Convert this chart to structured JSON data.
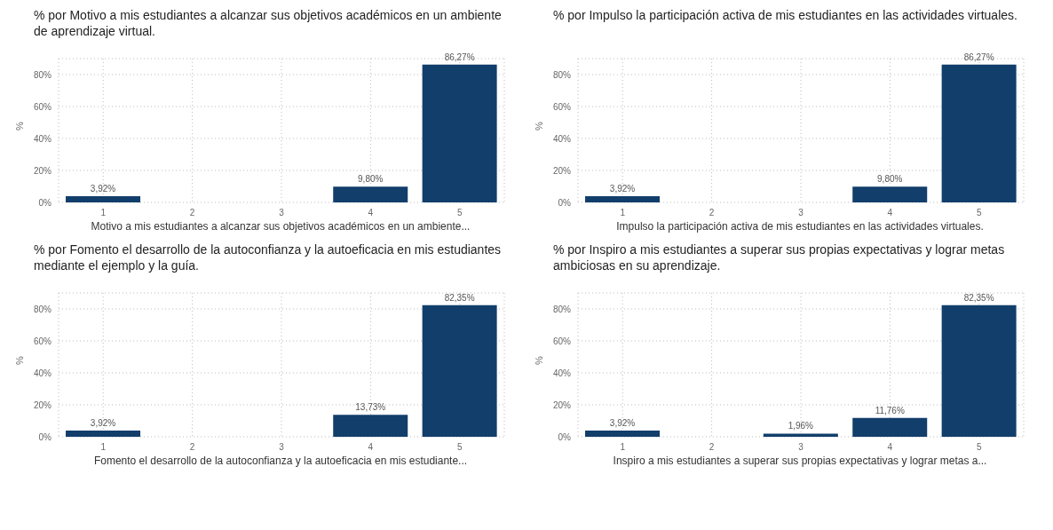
{
  "chart_data": [
    {
      "type": "bar",
      "title": "% por Motivo a mis estudiantes a alcanzar sus objetivos académicos en un ambiente de aprendizaje virtual.",
      "xlabel": "Motivo a mis estudiantes a alcanzar sus objetivos académicos en un ambiente...",
      "ylabel": "%",
      "categories": [
        "1",
        "2",
        "3",
        "4",
        "5"
      ],
      "values": [
        3.92,
        null,
        null,
        9.8,
        86.27
      ],
      "value_labels": [
        "3,92%",
        null,
        null,
        "9,80%",
        "86,27%"
      ],
      "color": "#123e6b",
      "ylim": [
        0,
        90
      ],
      "yticks": [
        {
          "value": 0,
          "label": "0%"
        },
        {
          "value": 20,
          "label": "20%"
        },
        {
          "value": 40,
          "label": "40%"
        },
        {
          "value": 60,
          "label": "60%"
        },
        {
          "value": 80,
          "label": "80%"
        }
      ],
      "grid": true
    },
    {
      "type": "bar",
      "title": "% por Impulso la participación activa de mis estudiantes en las actividades virtuales.",
      "xlabel": "Impulso la participación activa de mis estudiantes en las actividades virtuales.",
      "ylabel": "%",
      "categories": [
        "1",
        "2",
        "3",
        "4",
        "5"
      ],
      "values": [
        3.92,
        null,
        null,
        9.8,
        86.27
      ],
      "value_labels": [
        "3,92%",
        null,
        null,
        "9,80%",
        "86,27%"
      ],
      "color": "#123e6b",
      "ylim": [
        0,
        90
      ],
      "yticks": [
        {
          "value": 0,
          "label": "0%"
        },
        {
          "value": 20,
          "label": "20%"
        },
        {
          "value": 40,
          "label": "40%"
        },
        {
          "value": 60,
          "label": "60%"
        },
        {
          "value": 80,
          "label": "80%"
        }
      ],
      "grid": true
    },
    {
      "type": "bar",
      "title": "% por Fomento el desarrollo de la autoconfianza y la autoeficacia en mis estudiantes mediante el ejemplo y la guía.",
      "xlabel": "Fomento el desarrollo de la autoconfianza y la autoeficacia en mis estudiante...",
      "ylabel": "%",
      "categories": [
        "1",
        "2",
        "3",
        "4",
        "5"
      ],
      "values": [
        3.92,
        null,
        null,
        13.73,
        82.35
      ],
      "value_labels": [
        "3,92%",
        null,
        null,
        "13,73%",
        "82,35%"
      ],
      "color": "#123e6b",
      "ylim": [
        0,
        90
      ],
      "yticks": [
        {
          "value": 0,
          "label": "0%"
        },
        {
          "value": 20,
          "label": "20%"
        },
        {
          "value": 40,
          "label": "40%"
        },
        {
          "value": 60,
          "label": "60%"
        },
        {
          "value": 80,
          "label": "80%"
        }
      ],
      "grid": true
    },
    {
      "type": "bar",
      "title": "% por Inspiro a mis estudiantes a superar sus propias expectativas y lograr metas ambiciosas en su aprendizaje.",
      "xlabel": "Inspiro a mis estudiantes a superar sus propias expectativas y lograr metas a...",
      "ylabel": "%",
      "categories": [
        "1",
        "2",
        "3",
        "4",
        "5"
      ],
      "values": [
        3.92,
        null,
        1.96,
        11.76,
        82.35
      ],
      "value_labels": [
        "3,92%",
        null,
        "1,96%",
        "11,76%",
        "82,35%"
      ],
      "color": "#123e6b",
      "ylim": [
        0,
        90
      ],
      "yticks": [
        {
          "value": 0,
          "label": "0%"
        },
        {
          "value": 20,
          "label": "20%"
        },
        {
          "value": 40,
          "label": "40%"
        },
        {
          "value": 60,
          "label": "60%"
        },
        {
          "value": 80,
          "label": "80%"
        }
      ],
      "grid": true
    }
  ]
}
